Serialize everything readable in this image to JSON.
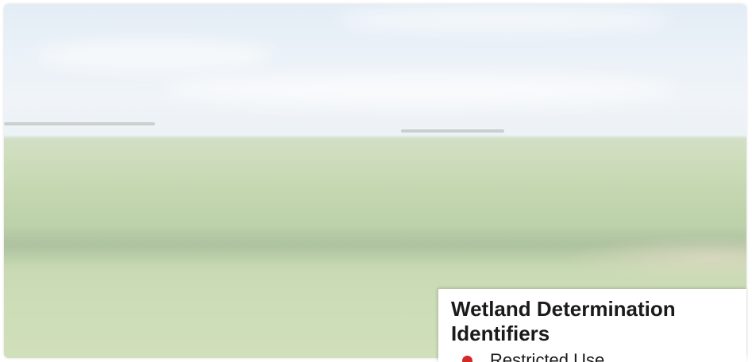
{
  "legend": {
    "title": "Wetland Determination Identifiers",
    "items": [
      {
        "label": "Restricted Use",
        "color": "#d62828",
        "icon": "red-dot-icon"
      }
    ]
  }
}
